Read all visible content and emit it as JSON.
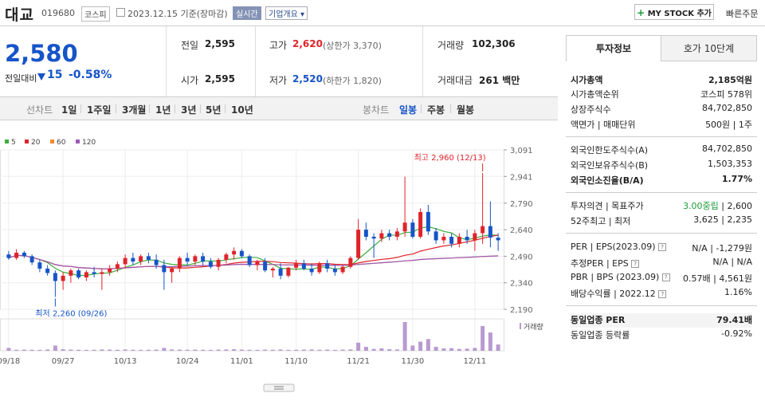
{
  "header": {
    "stock_name": "대교",
    "stock_code": "019680",
    "market": "코스피",
    "date": "2023.12.15 기준(장마감)",
    "live_label": "실시간",
    "company_info_label": "기업개요 ▾",
    "my_stock_label": "MY STOCK 추가",
    "quick_order_label": "빠른주문"
  },
  "price": {
    "current": "2,580",
    "change_label": "전일대비",
    "change_value": "15",
    "change_percent": "-0.58%",
    "prev_close_label": "전일",
    "prev_close": "2,595",
    "open_label": "시가",
    "open": "2,595",
    "high_label": "고가",
    "high": "2,620",
    "upper_limit": "(상한가 3,370)",
    "low_label": "저가",
    "low": "2,520",
    "lower_limit": "(하한가 1,820)",
    "volume_label": "거래량",
    "volume": "102,306",
    "amount_label": "거래대금",
    "amount": "261 백만"
  },
  "chart_tabs": {
    "line_label": "선차트",
    "periods": [
      "1일",
      "1주일",
      "3개월",
      "1년",
      "3년",
      "5년",
      "10년"
    ],
    "candle_label": "봉차트",
    "candle_periods": [
      "일봉",
      "주봉",
      "월봉"
    ],
    "selected_candle": "일봉"
  },
  "chart_data": {
    "type": "candlestick",
    "ma_legend": [
      {
        "name": "5",
        "color": "#3cae3c"
      },
      {
        "name": "20",
        "color": "#e0232a"
      },
      {
        "name": "60",
        "color": "#f08c32"
      },
      {
        "name": "120",
        "color": "#9b59b6"
      }
    ],
    "y_ticks": [
      "3,091",
      "2,941",
      "2,790",
      "2,640",
      "2,490",
      "2,340",
      "2,190"
    ],
    "y_tick_values": [
      3091,
      2941,
      2790,
      2640,
      2490,
      2340,
      2190
    ],
    "ylim": [
      2190,
      3091
    ],
    "x_labels": [
      "09/18",
      "09/27",
      "10/13",
      "10/24",
      "11/01",
      "11/10",
      "11/21",
      "11/30",
      "12/11"
    ],
    "x_label_index": [
      0,
      7,
      15,
      23,
      30,
      37,
      45,
      52,
      60
    ],
    "high_note": "최고 2,960 (12/13)",
    "high_index": 61,
    "low_note": "최저 2,260 (09/26)",
    "low_index": 6,
    "volume_label": "거래량",
    "candles": [
      [
        2500,
        2520,
        2470,
        2480
      ],
      [
        2480,
        2530,
        2470,
        2510
      ],
      [
        2510,
        2520,
        2480,
        2490
      ],
      [
        2490,
        2500,
        2440,
        2455
      ],
      [
        2455,
        2470,
        2400,
        2420
      ],
      [
        2420,
        2440,
        2380,
        2395
      ],
      [
        2395,
        2410,
        2260,
        2350
      ],
      [
        2350,
        2400,
        2300,
        2380
      ],
      [
        2380,
        2420,
        2340,
        2410
      ],
      [
        2410,
        2420,
        2360,
        2370
      ],
      [
        2370,
        2410,
        2350,
        2400
      ],
      [
        2400,
        2430,
        2370,
        2390
      ],
      [
        2390,
        2420,
        2300,
        2400
      ],
      [
        2400,
        2440,
        2380,
        2420
      ],
      [
        2420,
        2460,
        2400,
        2445
      ],
      [
        2445,
        2500,
        2420,
        2480
      ],
      [
        2480,
        2510,
        2440,
        2460
      ],
      [
        2460,
        2500,
        2440,
        2490
      ],
      [
        2490,
        2510,
        2450,
        2470
      ],
      [
        2470,
        2500,
        2420,
        2440
      ],
      [
        2440,
        2470,
        2300,
        2400
      ],
      [
        2400,
        2430,
        2340,
        2420
      ],
      [
        2420,
        2490,
        2400,
        2480
      ],
      [
        2480,
        2510,
        2440,
        2460
      ],
      [
        2460,
        2500,
        2440,
        2490
      ],
      [
        2490,
        2510,
        2440,
        2460
      ],
      [
        2460,
        2480,
        2420,
        2430
      ],
      [
        2430,
        2480,
        2410,
        2470
      ],
      [
        2470,
        2510,
        2450,
        2500
      ],
      [
        2500,
        2540,
        2470,
        2520
      ],
      [
        2520,
        2530,
        2480,
        2490
      ],
      [
        2490,
        2500,
        2430,
        2440
      ],
      [
        2440,
        2470,
        2410,
        2460
      ],
      [
        2460,
        2480,
        2400,
        2410
      ],
      [
        2410,
        2430,
        2370,
        2420
      ],
      [
        2420,
        2450,
        2360,
        2380
      ],
      [
        2380,
        2430,
        2370,
        2425
      ],
      [
        2425,
        2470,
        2410,
        2450
      ],
      [
        2450,
        2470,
        2410,
        2420
      ],
      [
        2420,
        2450,
        2380,
        2400
      ],
      [
        2400,
        2460,
        2390,
        2450
      ],
      [
        2450,
        2470,
        2400,
        2420
      ],
      [
        2420,
        2440,
        2380,
        2400
      ],
      [
        2400,
        2440,
        2390,
        2430
      ],
      [
        2430,
        2490,
        2420,
        2480
      ],
      [
        2480,
        2700,
        2470,
        2640
      ],
      [
        2640,
        2680,
        2580,
        2600
      ],
      [
        2600,
        2620,
        2480,
        2590
      ],
      [
        2590,
        2640,
        2570,
        2620
      ],
      [
        2620,
        2640,
        2580,
        2600
      ],
      [
        2600,
        2650,
        2580,
        2630
      ],
      [
        2630,
        2940,
        2600,
        2680
      ],
      [
        2680,
        2700,
        2590,
        2600
      ],
      [
        2600,
        2760,
        2590,
        2740
      ],
      [
        2740,
        2780,
        2610,
        2630
      ],
      [
        2630,
        2650,
        2560,
        2580
      ],
      [
        2580,
        2620,
        2560,
        2600
      ],
      [
        2600,
        2620,
        2540,
        2560
      ],
      [
        2560,
        2620,
        2540,
        2600
      ],
      [
        2600,
        2640,
        2560,
        2580
      ],
      [
        2580,
        2640,
        2520,
        2620
      ],
      [
        2620,
        2960,
        2560,
        2660
      ],
      [
        2660,
        2800,
        2540,
        2595
      ],
      [
        2595,
        2620,
        2520,
        2580
      ]
    ],
    "volume": [
      22,
      8,
      9,
      8,
      7,
      10,
      40,
      12,
      9,
      8,
      7,
      8,
      10,
      9,
      8,
      10,
      8,
      7,
      8,
      9,
      22,
      10,
      9,
      8,
      9,
      8,
      7,
      9,
      10,
      12,
      9,
      8,
      7,
      9,
      8,
      10,
      7,
      8,
      9,
      10,
      8,
      9,
      7,
      9,
      10,
      62,
      30,
      14,
      18,
      12,
      10,
      220,
      40,
      70,
      90,
      30,
      18,
      20,
      14,
      16,
      22,
      190,
      140,
      48
    ]
  },
  "right_panel": {
    "tab_invest": "투자정보",
    "tab_quote": "호가 10단계",
    "rows1": [
      {
        "label": "시가총액",
        "value": "2,185억원",
        "bold": true
      },
      {
        "label": "시가총액순위",
        "value": "코스피 578위"
      },
      {
        "label": "상장주식수",
        "value": "84,702,850"
      },
      {
        "label": "액면가 | 매매단위",
        "value": "500원 | 1주"
      }
    ],
    "rows2": [
      {
        "label": "외국인한도주식수(A)",
        "value": "84,702,850"
      },
      {
        "label": "외국인보유주식수(B)",
        "value": "1,503,353"
      },
      {
        "label": "외국인소진율(B/A)",
        "value": "1.77%",
        "bold": true
      }
    ],
    "rows3": [
      {
        "label": "투자의견 | 목표주가",
        "value_a": "3.00중립",
        "value_b": "2,600"
      },
      {
        "label": "52주최고 | 최저",
        "value_a": "3,625",
        "value_b": "2,235"
      }
    ],
    "rows4": [
      {
        "label": "PER | EPS(2023.09)",
        "value_a": "N/A",
        "value_b": "-1,279원"
      },
      {
        "label": "추정PER | EPS",
        "value_a": "N/A",
        "value_b": "N/A"
      },
      {
        "label": "PBR | BPS (2023.09)",
        "value_a": "0.57배",
        "value_b": "4,561원"
      },
      {
        "label": "배당수익률 | 2022.12",
        "value_b": "1.16%"
      }
    ],
    "rows5": [
      {
        "label": "동일업종 PER",
        "value": "79.41배",
        "bold": true
      },
      {
        "label": "동일업종 등락률",
        "value": "-0.92%",
        "blue": true
      }
    ]
  }
}
